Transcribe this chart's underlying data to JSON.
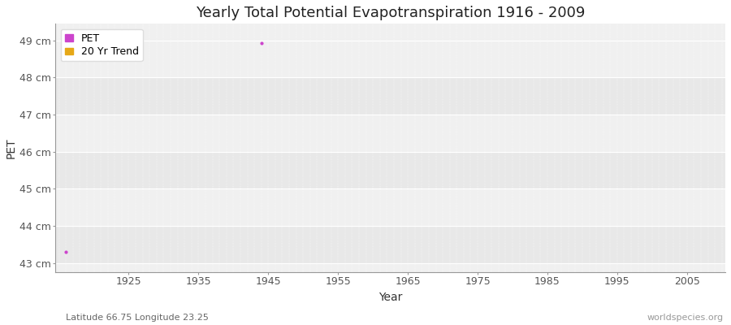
{
  "title": "Yearly Total Potential Evapotranspiration 1916 - 2009",
  "xlabel": "Year",
  "ylabel": "PET",
  "subtitle": "Latitude 66.75 Longitude 23.25",
  "watermark": "worldspecies.org",
  "xlim": [
    1914.5,
    2010.5
  ],
  "ylim": [
    42.75,
    49.45
  ],
  "yticks": [
    43,
    44,
    45,
    46,
    47,
    48,
    49
  ],
  "ytick_labels": [
    "43 cm",
    "44 cm",
    "45 cm",
    "46 cm",
    "47 cm",
    "48 cm",
    "49 cm"
  ],
  "xticks": [
    1925,
    1935,
    1945,
    1955,
    1965,
    1975,
    1985,
    1995,
    2005
  ],
  "pet_color": "#cc44cc",
  "trend_color": "#e6a817",
  "fig_bg": "#ffffff",
  "plot_bg_light": "#f0f0f0",
  "plot_bg_dark": "#e6e6e6",
  "band_starts_light": [
    43,
    44,
    45,
    46,
    47,
    48
  ],
  "band_colors": [
    "#ebebeb",
    "#f2f2f2",
    "#ebebeb",
    "#f2f2f2",
    "#ebebeb",
    "#f2f2f2"
  ],
  "pet_data_x": [
    1916,
    1944
  ],
  "pet_data_y": [
    43.3,
    48.93
  ],
  "legend_pet_label": "PET",
  "legend_trend_label": "20 Yr Trend",
  "title_fontsize": 13,
  "axis_label_fontsize": 10,
  "tick_fontsize": 9,
  "watermark_fontsize": 8,
  "subtitle_fontsize": 8
}
